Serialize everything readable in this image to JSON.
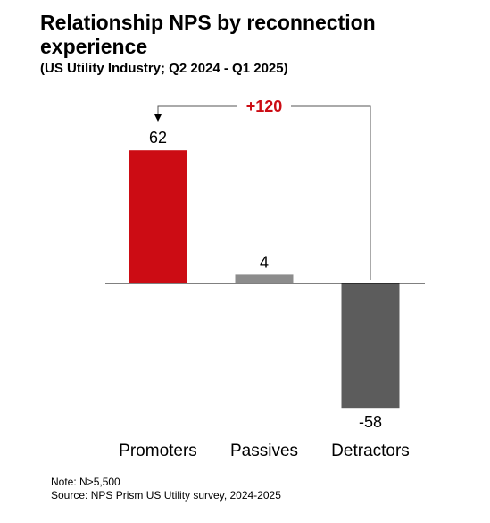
{
  "header": {
    "title": "Relationship NPS by reconnection experience",
    "subtitle": "(US Utility Industry; Q2 2024 - Q1 2025)"
  },
  "chart_data": {
    "type": "bar",
    "categories": [
      "Promoters",
      "Passives",
      "Detractors"
    ],
    "values": [
      62,
      4,
      -58
    ],
    "value_labels": [
      "62",
      "4",
      "-58"
    ],
    "colors": [
      "#cc0c14",
      "#8c8c8c",
      "#5c5c5c"
    ],
    "axis_color": "#000000",
    "ylim": [
      -62,
      66
    ],
    "grid": false,
    "annotation": {
      "label": "+120",
      "color": "#cc0c14",
      "from_category": "Detractors",
      "to_category": "Promoters"
    }
  },
  "footer": {
    "note": "Note: N>5,500",
    "source": "Source: NPS Prism US Utility survey, 2024-2025"
  }
}
